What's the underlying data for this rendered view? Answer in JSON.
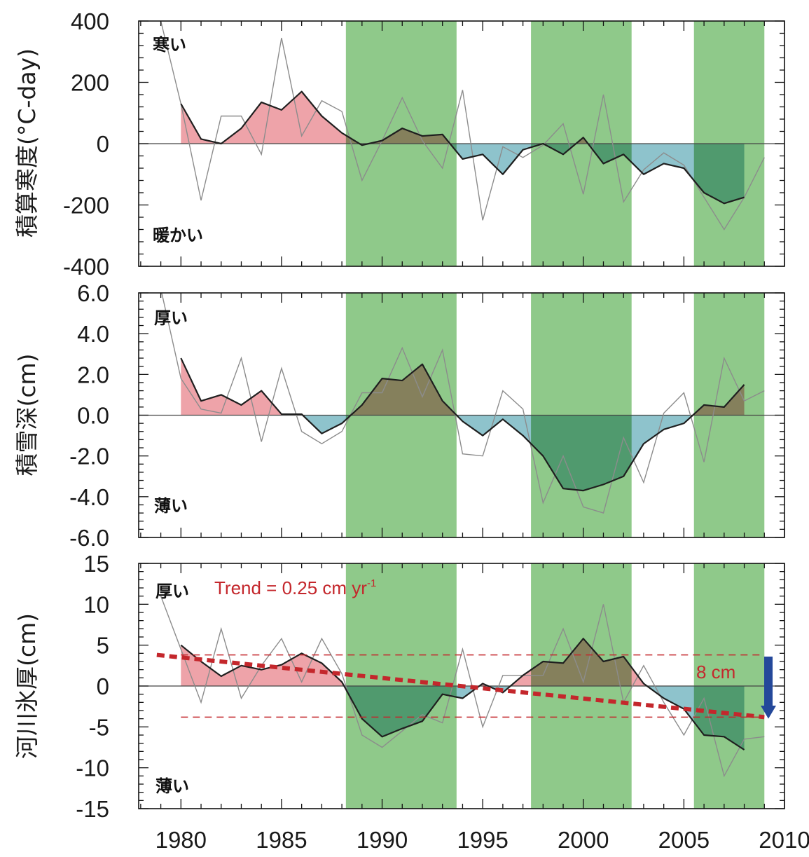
{
  "colors": {
    "shading": "#8fc98a",
    "positive_fill": "#eea3a9",
    "negative_fill": "#8ec3cc",
    "smooth_line": "#1f1f1f",
    "raw_line": "#8c8c8c",
    "trend": "#c4272c",
    "arrow": "#24489a"
  },
  "chart_data": [
    {
      "type": "area",
      "ylabel_main": "積算寒度",
      "ylabel_unit": "(°C-day)",
      "ylim": [
        -400,
        400
      ],
      "yticks": [
        -400,
        -200,
        0,
        200,
        400
      ],
      "ytick_labels": [
        "-400",
        "-200",
        "0",
        "200",
        "400"
      ],
      "annotations": {
        "top": "寒い",
        "bottom": "暖かい"
      },
      "raw": {
        "x": [
          1979,
          1980,
          1981,
          1982,
          1983,
          1984,
          1985,
          1986,
          1987,
          1988,
          1989,
          1990,
          1991,
          1992,
          1993,
          1994,
          1995,
          1996,
          1997,
          1998,
          1999,
          2000,
          2001,
          2002,
          2003,
          2004,
          2005,
          2006,
          2007,
          2008,
          2009
        ],
        "y": [
          400,
          130,
          -185,
          90,
          90,
          -35,
          345,
          25,
          140,
          105,
          -120,
          10,
          150,
          10,
          -80,
          175,
          -250,
          -10,
          -45,
          -5,
          65,
          -165,
          160,
          -190,
          -85,
          -30,
          -70,
          -175,
          -280,
          -175,
          -45
        ]
      },
      "smooth": {
        "x": [
          1980,
          1981,
          1982,
          1983,
          1984,
          1985,
          1986,
          1987,
          1988,
          1989,
          1990,
          1991,
          1992,
          1993,
          1994,
          1995,
          1996,
          1997,
          1998,
          1999,
          2000,
          2001,
          2002,
          2003,
          2004,
          2005,
          2006,
          2007,
          2008
        ],
        "y": [
          130,
          15,
          0,
          50,
          135,
          110,
          170,
          90,
          35,
          -5,
          10,
          50,
          25,
          30,
          -50,
          -35,
          -100,
          -20,
          0,
          -35,
          20,
          -65,
          -35,
          -100,
          -65,
          -80,
          -160,
          -195,
          -175
        ]
      }
    },
    {
      "type": "area",
      "ylabel_main": "積雪深",
      "ylabel_unit": "(cm)",
      "ylim": [
        -6,
        6
      ],
      "yticks": [
        -6,
        -4,
        -2,
        0,
        2,
        4,
        6
      ],
      "ytick_labels": [
        "-6.0",
        "-4.0",
        "-2.0",
        "0.0",
        "2.0",
        "4.0",
        "6.0"
      ],
      "annotations": {
        "top": "厚い",
        "bottom": "薄い"
      },
      "raw": {
        "x": [
          1979,
          1980,
          1981,
          1982,
          1983,
          1984,
          1985,
          1986,
          1987,
          1988,
          1989,
          1990,
          1991,
          1992,
          1993,
          1994,
          1995,
          1996,
          1997,
          1998,
          1999,
          2000,
          2001,
          2002,
          2003,
          2004,
          2005,
          2006,
          2007,
          2008,
          2009
        ],
        "y": [
          6.2,
          1.8,
          0.3,
          0.1,
          2.8,
          -1.3,
          2.3,
          -0.8,
          -1.4,
          -0.8,
          1.1,
          1.1,
          3.3,
          0.9,
          3.2,
          -1.9,
          -2.0,
          1.2,
          0.3,
          -4.3,
          -2.0,
          -4.5,
          -4.8,
          -1.1,
          -3.3,
          0.1,
          1.1,
          -2.3,
          2.8,
          0.7,
          1.2
        ]
      },
      "smooth": {
        "x": [
          1980,
          1981,
          1982,
          1983,
          1984,
          1985,
          1986,
          1987,
          1988,
          1989,
          1990,
          1991,
          1992,
          1993,
          1994,
          1995,
          1996,
          1997,
          1998,
          1999,
          2000,
          2001,
          2002,
          2003,
          2004,
          2005,
          2006,
          2007,
          2008
        ],
        "y": [
          2.8,
          0.7,
          1.0,
          0.5,
          1.2,
          0.05,
          0.05,
          -0.9,
          -0.4,
          0.5,
          1.8,
          1.7,
          2.5,
          0.7,
          -0.3,
          -1.0,
          -0.2,
          -1.0,
          -2.0,
          -3.6,
          -3.7,
          -3.4,
          -3.0,
          -1.4,
          -0.7,
          -0.4,
          0.5,
          0.4,
          1.5
        ]
      }
    },
    {
      "type": "area",
      "ylabel_main": "河川氷厚",
      "ylabel_unit": "(cm)",
      "ylim": [
        -15,
        15
      ],
      "yticks": [
        -15,
        -10,
        -5,
        0,
        5,
        10,
        15
      ],
      "ytick_labels": [
        "-15",
        "-10",
        "-5",
        "0",
        "5",
        "10",
        "15"
      ],
      "annotations": {
        "top": "厚い",
        "bottom": "薄い"
      },
      "trend_label": "Trend = 0.25 cm yr",
      "trend_label_sup": "-1",
      "trend_line": {
        "x": [
          1978.8,
          2009
        ],
        "y": [
          3.8,
          -3.8
        ]
      },
      "reference_lines": [
        3.8,
        -3.8
      ],
      "difference_label": "8 cm",
      "raw": {
        "x": [
          1979,
          1980,
          1981,
          1982,
          1983,
          1984,
          1985,
          1986,
          1987,
          1988,
          1989,
          1990,
          1991,
          1992,
          1993,
          1994,
          1995,
          1996,
          1997,
          1998,
          1999,
          2000,
          2001,
          2002,
          2003,
          2004,
          2005,
          2006,
          2007,
          2008,
          2009
        ],
        "y": [
          11,
          4.5,
          -2,
          7,
          -1.5,
          2.5,
          5.8,
          0.5,
          5.8,
          1.5,
          -6,
          -7.5,
          -5.5,
          -3.5,
          -4.5,
          4.5,
          -5,
          1.3,
          1.3,
          1.3,
          7,
          0.5,
          10,
          -2,
          2.5,
          -2,
          -6,
          -1.5,
          -11,
          -6.5,
          -6.2
        ]
      },
      "smooth": {
        "x": [
          1980,
          1981,
          1982,
          1983,
          1984,
          1985,
          1986,
          1987,
          1988,
          1989,
          1990,
          1991,
          1992,
          1993,
          1994,
          1995,
          1996,
          1997,
          1998,
          1999,
          2000,
          2001,
          2002,
          2003,
          2004,
          2005,
          2006,
          2007,
          2008
        ],
        "y": [
          5.0,
          3.0,
          1.2,
          2.5,
          2.0,
          2.6,
          4.0,
          2.8,
          0.5,
          -4.0,
          -6.2,
          -5.2,
          -4.3,
          -1.0,
          -1.5,
          0.3,
          -0.8,
          1.3,
          3.0,
          2.8,
          5.8,
          3.0,
          3.6,
          0.3,
          -1.5,
          -2.8,
          -6.0,
          -6.2,
          -7.8
        ]
      }
    }
  ],
  "shading_periods": [
    [
      1988.2,
      1993.7
    ],
    [
      1997.4,
      2002.4
    ],
    [
      2005.5,
      2009.0
    ]
  ],
  "xaxis": {
    "xlim": [
      1977.9,
      2010
    ],
    "xticks": [
      1980,
      1985,
      1990,
      1995,
      2000,
      2005,
      2010
    ],
    "xtick_labels": [
      "1980",
      "1985",
      "1990",
      "1995",
      "2000",
      "2005",
      "2010"
    ]
  }
}
